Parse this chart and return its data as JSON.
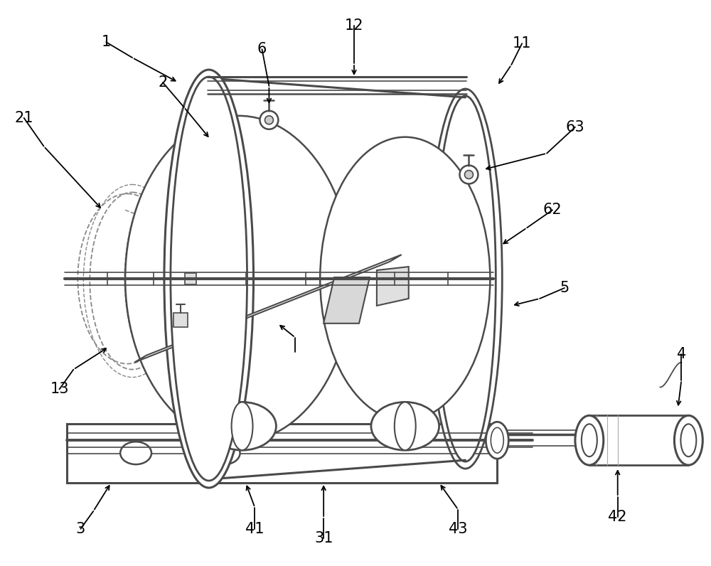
{
  "background": "#ffffff",
  "lc": "#4a4a4a",
  "dc": "#888888",
  "lc2": "#666666",
  "figsize": [
    10.0,
    7.96
  ],
  "dpi": 100
}
